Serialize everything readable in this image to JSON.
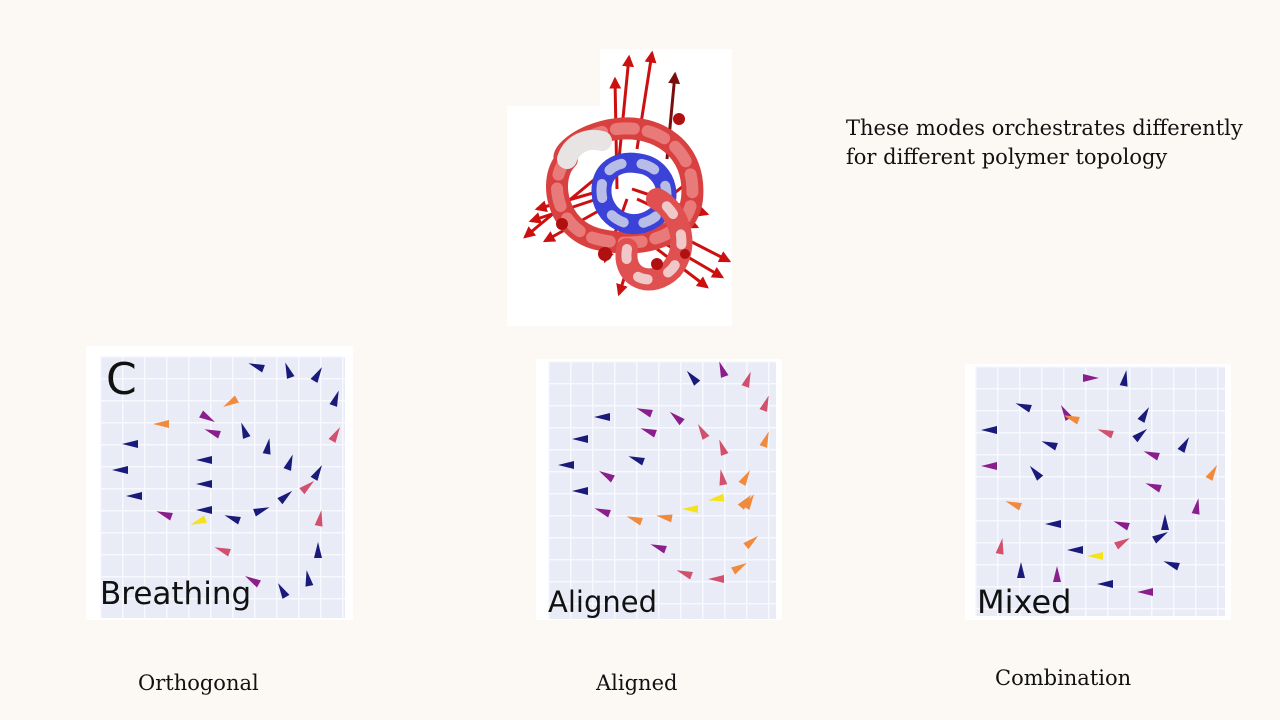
{
  "description": {
    "line1": "These modes orchestrates differently",
    "line2": "for different polymer topology"
  },
  "panels": [
    {
      "letter": "C",
      "label": "Breathing",
      "caption": "Orthogonal"
    },
    {
      "letter": "",
      "label": "Aligned",
      "caption": "Aligned"
    },
    {
      "letter": "",
      "label": "Mixed",
      "caption": "Combination"
    }
  ],
  "colors": {
    "background": "#fcf9f4",
    "plot_background": "#e9ecf6",
    "arrow_dark": "#1a1a7a",
    "arrow_purple": "#8a1e8c",
    "arrow_pink": "#d2506e",
    "arrow_orange": "#f08a3c",
    "arrow_yellow": "#f5e21e",
    "knot_red": "#d91c1c",
    "knot_blue": "#2e3ad6",
    "knot_white": "#f2eeee"
  },
  "icons": {
    "knot_image": "polymer-knot-with-mode-arrows",
    "plot_marker": "cone-arrow"
  }
}
